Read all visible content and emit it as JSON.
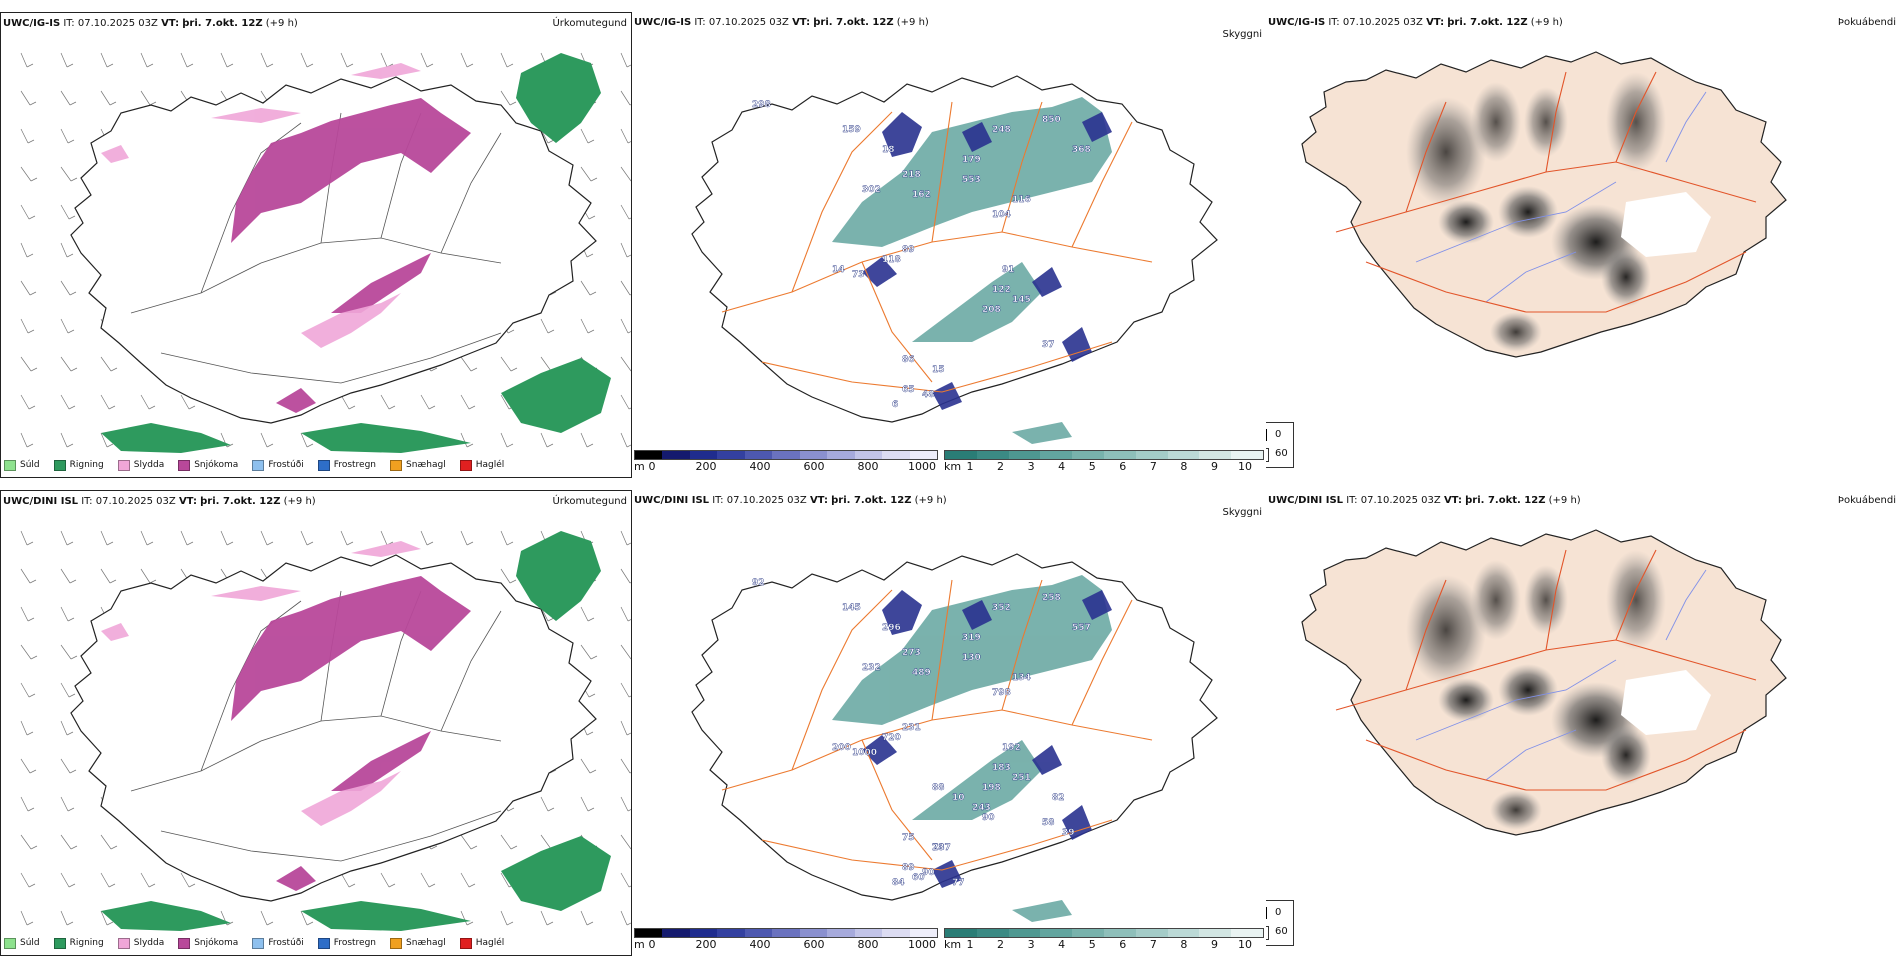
{
  "rows": [
    {
      "model": "UWC/IG-IS",
      "it_label": "IT:",
      "it_value": "07.10.2025 03Z",
      "vt_label": "VT:",
      "vt_value": "þri. 7.okt. 12Z",
      "lead": "(+9 h)",
      "labels": [
        "298",
        "159",
        "18",
        "218",
        "302",
        "162",
        "553",
        "248",
        "850",
        "368",
        "179",
        "116",
        "104",
        "89",
        "14",
        "73",
        "118",
        "91",
        "122",
        "208",
        "145",
        "37",
        "86",
        "15",
        "65",
        "48",
        "6"
      ]
    },
    {
      "model": "UWC/DINI ISL",
      "it_label": "IT:",
      "it_value": "07.10.2025 03Z",
      "vt_label": "VT:",
      "vt_value": "þri. 7.okt. 12Z",
      "lead": "(+9 h)",
      "labels": [
        "92",
        "145",
        "296",
        "273",
        "232",
        "489",
        "130",
        "352",
        "258",
        "557",
        "319",
        "134",
        "798",
        "231",
        "200",
        "1000",
        "720",
        "192",
        "183",
        "198",
        "251",
        "58",
        "75",
        "78",
        "89",
        "90",
        "84",
        "10",
        "90",
        "88",
        "243",
        "82",
        "39",
        "237",
        "60",
        "77"
      ]
    }
  ],
  "panel_titles": {
    "precip": "Úrkomutegund",
    "visibility": "Skyggni",
    "fog": "Þokuábendi"
  },
  "precip_legend": [
    {
      "label": "Súld",
      "color": "#8ee28e"
    },
    {
      "label": "Rigning",
      "color": "#2e9a5e"
    },
    {
      "label": "Slydda",
      "color": "#f0a6d8"
    },
    {
      "label": "Snjókoma",
      "color": "#b8489a"
    },
    {
      "label": "Frostúði",
      "color": "#8ec0ee"
    },
    {
      "label": "Frostregn",
      "color": "#2e6ec8"
    },
    {
      "label": "Snæhagl",
      "color": "#f0a020"
    },
    {
      "label": "Haglél",
      "color": "#e02020"
    }
  ],
  "ceiling_scale": {
    "unit": "m",
    "ticks": [
      "0",
      "200",
      "400",
      "600",
      "800",
      "1000"
    ],
    "colors": [
      "#000000",
      "#141a6e",
      "#1f2c8e",
      "#3340a0",
      "#4d58b0",
      "#6a72bf",
      "#8a90cf",
      "#a6aadc",
      "#c2c4e8",
      "#dcdcf2",
      "#eeeefa"
    ]
  },
  "visibility_scale": {
    "unit": "km",
    "ticks": [
      "1",
      "2",
      "3",
      "4",
      "5",
      "6",
      "7",
      "8",
      "9",
      "10"
    ],
    "colors": [
      "#2a7d76",
      "#3b8a84",
      "#4e9891",
      "#62a59f",
      "#78b2ac",
      "#8ebfba",
      "#a4ccc8",
      "#bbd9d6",
      "#d2e6e3",
      "#e9f3f2"
    ]
  },
  "fog_legend": {
    "high": "0",
    "low": "60"
  },
  "colors": {
    "land": "#f6e3d4",
    "coast": "#222222",
    "road": "#ec7a30",
    "snow": "#b8489a",
    "sleet": "#f0a6d8",
    "rain": "#2e9a5e",
    "vis": "#4e9891",
    "low_ceiling": "#2a3290",
    "river": "#8090e8"
  }
}
